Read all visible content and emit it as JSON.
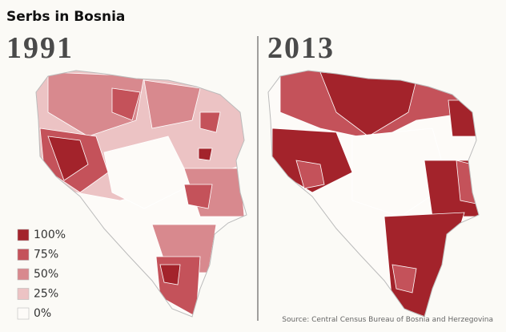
{
  "title": "Serbs in Bosnia",
  "panels": [
    {
      "year": "1991"
    },
    {
      "year": "2013"
    }
  ],
  "legend": [
    {
      "label": "100%",
      "color": "#a3232b"
    },
    {
      "label": "75%",
      "color": "#c4525a"
    },
    {
      "label": "50%",
      "color": "#d8898e"
    },
    {
      "label": "25%",
      "color": "#ecc3c4"
    },
    {
      "label": "0%",
      "color": "#fdfbf8"
    }
  ],
  "source": "Source: Central Census Bureau of Bosnia and Herzegovina"
}
